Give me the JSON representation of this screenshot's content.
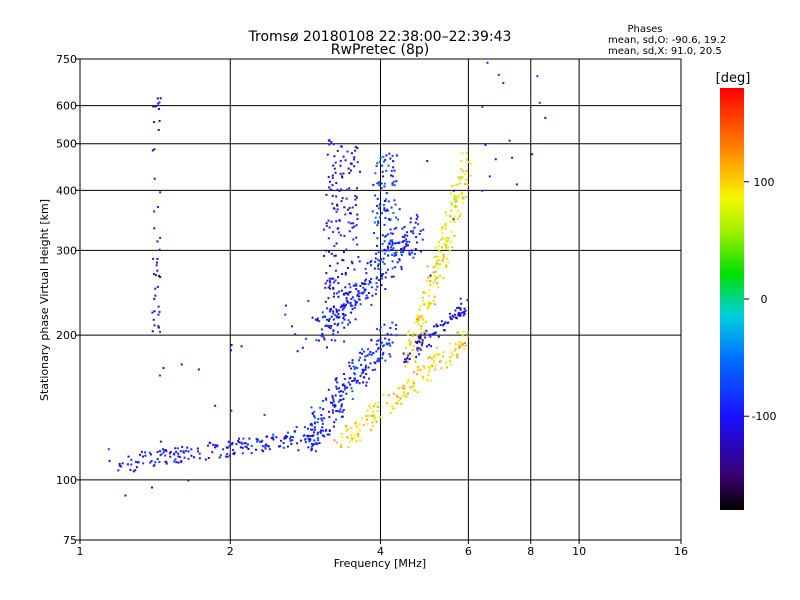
{
  "title_line1": "Tromsø 20180108 22:38:00–22:39:43",
  "title_line2": "RwPretec (8p)",
  "stats": {
    "header": "Phases",
    "line_o": "mean, sd,O: -90.6, 19.2",
    "line_x": "mean, sd,X:  91.0, 20.5"
  },
  "colorbar": {
    "label": "[deg]",
    "range": [
      -180,
      180
    ],
    "ticks": [
      {
        "value": 100,
        "label": "100"
      },
      {
        "value": 0,
        "label": "0"
      },
      {
        "value": -100,
        "label": "-100"
      }
    ]
  },
  "chart_data": {
    "type": "scatter",
    "xlabel": "Frequency [MHz]",
    "ylabel": "Stationary phase Virtual Height [km]",
    "xscale": "log",
    "yscale": "log",
    "xlim": [
      1,
      16
    ],
    "ylim": [
      75,
      750
    ],
    "grid": true,
    "x_ticks": [
      {
        "value": 1,
        "label": "1"
      },
      {
        "value": 2,
        "label": "2"
      },
      {
        "value": 4,
        "label": "4"
      },
      {
        "value": 6,
        "label": "6"
      },
      {
        "value": 8,
        "label": "8"
      },
      {
        "value": 10,
        "label": "10"
      },
      {
        "value": 16,
        "label": "16"
      }
    ],
    "y_ticks": [
      {
        "value": 75,
        "label": "75"
      },
      {
        "value": 100,
        "label": "100"
      },
      {
        "value": 200,
        "label": "200"
      },
      {
        "value": 300,
        "label": "300"
      },
      {
        "value": 400,
        "label": "400"
      },
      {
        "value": 500,
        "label": "500"
      },
      {
        "value": 600,
        "label": "600"
      },
      {
        "value": 750,
        "label": "750"
      }
    ],
    "grid_x": [
      1,
      2,
      4,
      6,
      8,
      10,
      16
    ],
    "grid_y": [
      75,
      100,
      200,
      300,
      400,
      500,
      600,
      750
    ],
    "point_clusters": [
      {
        "name": "low-freq trace",
        "x": [
          1.2,
          3.2
        ],
        "y": [
          108,
          125
        ],
        "phase": -100,
        "count": 200,
        "spread": 0.04
      },
      {
        "name": "o-mode low layer",
        "x": [
          2.8,
          4.2
        ],
        "y": [
          120,
          200
        ],
        "phase": -90,
        "count": 220,
        "spread": 0.08
      },
      {
        "name": "x-mode trace",
        "x": [
          3.3,
          6.0
        ],
        "y": [
          118,
          200
        ],
        "phase": 95,
        "count": 170,
        "spread": 0.05
      },
      {
        "name": "o-mode upper",
        "x": [
          3.0,
          4.8
        ],
        "y": [
          200,
          330
        ],
        "phase": -95,
        "count": 220,
        "spread": 0.08
      },
      {
        "name": "scatter column near 3.3 MHz",
        "x": [
          3.1,
          3.6
        ],
        "y": [
          220,
          500
        ],
        "phase": -110,
        "count": 180,
        "spread": 0.03
      },
      {
        "name": "scatter column near 4 MHz",
        "x": [
          3.9,
          4.3
        ],
        "y": [
          280,
          480
        ],
        "phase": -80,
        "count": 120,
        "spread": 0.03
      },
      {
        "name": "x-mode upper",
        "x": [
          4.6,
          6.0
        ],
        "y": [
          180,
          460
        ],
        "phase": 90,
        "count": 200,
        "spread": 0.06
      },
      {
        "name": "mid blue streak",
        "x": [
          4.5,
          5.9
        ],
        "y": [
          180,
          230
        ],
        "phase": -110,
        "count": 90,
        "spread": 0.04
      },
      {
        "name": "isolated 1.4 MHz column",
        "x": [
          1.4,
          1.45
        ],
        "y": [
          200,
          640
        ],
        "phase": -110,
        "count": 45,
        "spread": 0.01
      },
      {
        "name": "sparse noise",
        "x": [
          1.05,
          8.0
        ],
        "y": [
          85,
          600
        ],
        "phase": -100,
        "count": 55,
        "spread": 0.3
      }
    ]
  }
}
